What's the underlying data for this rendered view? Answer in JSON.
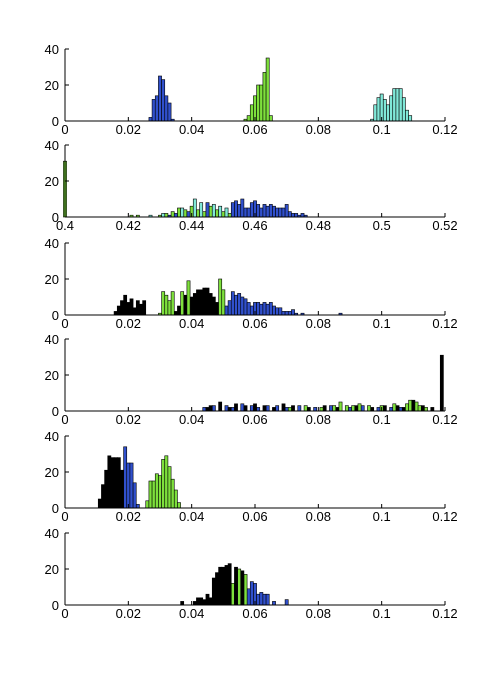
{
  "chart_data": [
    {
      "type": "bar",
      "xlim": [
        0,
        0.12
      ],
      "ylim": [
        0,
        40
      ],
      "xticks": [
        "0",
        "0.02",
        "0.04",
        "0.06",
        "0.08",
        "0.1",
        "0.12"
      ],
      "yticks": [
        "0",
        "20",
        "40"
      ],
      "series": [
        {
          "color": "#3050cc",
          "bin_width": 0.001,
          "x": [
            0.027,
            0.028,
            0.029,
            0.03,
            0.031,
            0.032,
            0.033,
            0.034
          ],
          "y": [
            2,
            12,
            14,
            25,
            23,
            14,
            10,
            1
          ]
        },
        {
          "color": "#7ee03c",
          "bin_width": 0.001,
          "x": [
            0.057,
            0.058,
            0.059,
            0.06,
            0.061,
            0.062,
            0.063,
            0.064,
            0.065
          ],
          "y": [
            1,
            3,
            9,
            14,
            20,
            20,
            27,
            35,
            3
          ]
        },
        {
          "color": "#80e8d8",
          "bin_width": 0.001,
          "x": [
            0.097,
            0.098,
            0.099,
            0.1,
            0.101,
            0.102,
            0.103,
            0.104,
            0.105,
            0.106,
            0.107,
            0.108,
            0.109
          ],
          "y": [
            1,
            9,
            13,
            15,
            12,
            9,
            14,
            18,
            18,
            18,
            13,
            6,
            3
          ]
        }
      ]
    },
    {
      "type": "bar",
      "xlim": [
        0.4,
        0.52
      ],
      "ylim": [
        0,
        40
      ],
      "xticks": [
        "0.4",
        "0.42",
        "0.44",
        "0.46",
        "0.48",
        "0.5",
        "0.52"
      ],
      "yticks": [
        "0",
        "20",
        "40"
      ],
      "series": [
        {
          "color": "#7ee03c",
          "bin_width": 0.001,
          "x": [
            0.4,
            0.421,
            0.423,
            0.43,
            0.432,
            0.434,
            0.436,
            0.438,
            0.44,
            0.442,
            0.444,
            0.446,
            0.448,
            0.45,
            0.452
          ],
          "y": [
            31,
            1,
            1,
            1,
            2,
            3,
            5,
            4,
            6,
            4,
            3,
            6,
            4,
            3,
            2
          ]
        },
        {
          "color": "#80e8d8",
          "bin_width": 0.001,
          "x": [
            0.427,
            0.431,
            0.437,
            0.441,
            0.443,
            0.447,
            0.449,
            0.451
          ],
          "y": [
            1,
            2,
            5,
            10,
            8,
            7,
            6,
            5
          ]
        },
        {
          "color": "#3050cc",
          "bin_width": 0.001,
          "x": [
            0.433,
            0.435,
            0.439,
            0.445,
            0.453,
            0.454,
            0.455,
            0.456,
            0.457,
            0.458,
            0.459,
            0.46,
            0.461,
            0.462,
            0.463,
            0.464,
            0.465,
            0.466,
            0.467,
            0.468,
            0.469,
            0.47,
            0.471,
            0.472,
            0.473,
            0.474,
            0.475,
            0.476
          ],
          "y": [
            1,
            2,
            3,
            8,
            8,
            9,
            7,
            10,
            5,
            5,
            8,
            9,
            7,
            5,
            7,
            6,
            7,
            6,
            5,
            5,
            5,
            7,
            3,
            2,
            2,
            1,
            2,
            1
          ]
        }
      ]
    },
    {
      "type": "bar",
      "xlim": [
        0,
        0.12
      ],
      "ylim": [
        0,
        40
      ],
      "xticks": [
        "0",
        "0.02",
        "0.04",
        "0.06",
        "0.08",
        "0.1",
        "0.12"
      ],
      "yticks": [
        "0",
        "20",
        "40"
      ],
      "series": [
        {
          "color": "#000000",
          "bin_width": 0.001,
          "x": [
            0.016,
            0.017,
            0.018,
            0.019,
            0.02,
            0.021,
            0.022,
            0.023,
            0.024,
            0.025,
            0.035,
            0.036,
            0.038,
            0.04,
            0.041,
            0.042,
            0.043,
            0.044,
            0.045,
            0.046,
            0.047,
            0.048
          ],
          "y": [
            2,
            5,
            8,
            11,
            7,
            9,
            4,
            8,
            6,
            8,
            2,
            5,
            11,
            10,
            12,
            14,
            14,
            15,
            15,
            12,
            10,
            7
          ]
        },
        {
          "color": "#7ee03c",
          "bin_width": 0.001,
          "x": [
            0.03,
            0.031,
            0.032,
            0.033,
            0.034,
            0.037,
            0.039,
            0.049,
            0.05
          ],
          "y": [
            1,
            13,
            11,
            8,
            13,
            13,
            19,
            20,
            14
          ]
        },
        {
          "color": "#3050cc",
          "bin_width": 0.001,
          "x": [
            0.051,
            0.052,
            0.053,
            0.054,
            0.055,
            0.056,
            0.057,
            0.058,
            0.059,
            0.06,
            0.061,
            0.062,
            0.063,
            0.064,
            0.065,
            0.066,
            0.067,
            0.068,
            0.069,
            0.07,
            0.071,
            0.072,
            0.073,
            0.075,
            0.087
          ],
          "y": [
            5,
            8,
            13,
            11,
            12,
            10,
            9,
            7,
            5,
            7,
            7,
            6,
            7,
            6,
            7,
            5,
            4,
            4,
            2,
            2,
            2,
            3,
            1,
            1,
            1
          ]
        }
      ]
    },
    {
      "type": "bar",
      "xlim": [
        0,
        0.12
      ],
      "ylim": [
        0,
        40
      ],
      "xticks": [
        "0",
        "0.02",
        "0.04",
        "0.06",
        "0.08",
        "0.1",
        "0.12"
      ],
      "yticks": [
        "0",
        "20",
        "40"
      ],
      "series": [
        {
          "color": "#3050cc",
          "bin_width": 0.001,
          "x": [
            0.044,
            0.047,
            0.051,
            0.053,
            0.056,
            0.059,
            0.061,
            0.064,
            0.067,
            0.07,
            0.074,
            0.079,
            0.084,
            0.09,
            0.094,
            0.099,
            0.103,
            0.106
          ],
          "y": [
            2,
            3,
            3,
            2,
            4,
            3,
            2,
            3,
            3,
            2,
            3,
            2,
            3,
            2,
            3,
            2,
            2,
            2
          ]
        },
        {
          "color": "#000000",
          "bin_width": 0.001,
          "x": [
            0.045,
            0.046,
            0.049,
            0.052,
            0.054,
            0.057,
            0.06,
            0.063,
            0.066,
            0.069,
            0.072,
            0.077,
            0.082,
            0.086,
            0.092,
            0.097,
            0.101,
            0.105,
            0.107,
            0.11,
            0.113,
            0.116,
            0.119
          ],
          "y": [
            2,
            3,
            5,
            2,
            4,
            3,
            4,
            3,
            2,
            4,
            3,
            2,
            3,
            2,
            3,
            2,
            3,
            3,
            2,
            6,
            3,
            2,
            31
          ]
        },
        {
          "color": "#7ee03c",
          "bin_width": 0.001,
          "x": [
            0.071,
            0.076,
            0.081,
            0.085,
            0.087,
            0.089,
            0.091,
            0.093,
            0.096,
            0.1,
            0.104,
            0.108,
            0.109,
            0.111,
            0.112,
            0.114
          ],
          "y": [
            2,
            3,
            2,
            3,
            5,
            3,
            3,
            4,
            3,
            3,
            4,
            4,
            6,
            5,
            3,
            2
          ]
        }
      ]
    },
    {
      "type": "bar",
      "xlim": [
        0,
        0.12
      ],
      "ylim": [
        0,
        40
      ],
      "xticks": [
        "0",
        "0.02",
        "0.04",
        "0.06",
        "0.08",
        "0.1",
        "0.12"
      ],
      "yticks": [
        "0",
        "20",
        "40"
      ],
      "series": [
        {
          "color": "#3050cc",
          "bin_width": 0.001,
          "x": [
            0.019,
            0.02,
            0.021,
            0.022,
            0.023
          ],
          "y": [
            34,
            25,
            25,
            14,
            2
          ]
        },
        {
          "color": "#000000",
          "bin_width": 0.001,
          "x": [
            0.011,
            0.012,
            0.013,
            0.014,
            0.015,
            0.016,
            0.017,
            0.018
          ],
          "y": [
            5,
            13,
            21,
            29,
            28,
            28,
            28,
            21
          ]
        },
        {
          "color": "#7ee03c",
          "bin_width": 0.001,
          "x": [
            0.026,
            0.027,
            0.028,
            0.029,
            0.03,
            0.031,
            0.032,
            0.033,
            0.034,
            0.035,
            0.036
          ],
          "y": [
            4,
            15,
            15,
            19,
            18,
            27,
            29,
            23,
            16,
            10,
            3
          ]
        }
      ]
    },
    {
      "type": "bar",
      "xlim": [
        0,
        0.12
      ],
      "ylim": [
        0,
        40
      ],
      "xticks": [
        "0",
        "0.02",
        "0.04",
        "0.06",
        "0.08",
        "0.1",
        "0.12"
      ],
      "yticks": [
        "0",
        "20",
        "40"
      ],
      "series": [
        {
          "color": "#3050cc",
          "bin_width": 0.001,
          "x": [
            0.058,
            0.059,
            0.06,
            0.061,
            0.062,
            0.063,
            0.064,
            0.066,
            0.07
          ],
          "y": [
            9,
            13,
            12,
            6,
            7,
            6,
            6,
            2,
            3
          ]
        },
        {
          "color": "#7ee03c",
          "bin_width": 0.001,
          "x": [
            0.053,
            0.055,
            0.057
          ],
          "y": [
            12,
            20,
            17
          ]
        },
        {
          "color": "#000000",
          "bin_width": 0.001,
          "x": [
            0.037,
            0.041,
            0.042,
            0.043,
            0.044,
            0.045,
            0.046,
            0.047,
            0.048,
            0.049,
            0.05,
            0.051,
            0.052,
            0.054,
            0.056
          ],
          "y": [
            2,
            2,
            4,
            4,
            3,
            6,
            4,
            15,
            18,
            21,
            21,
            22,
            23,
            21,
            19
          ]
        }
      ]
    }
  ]
}
